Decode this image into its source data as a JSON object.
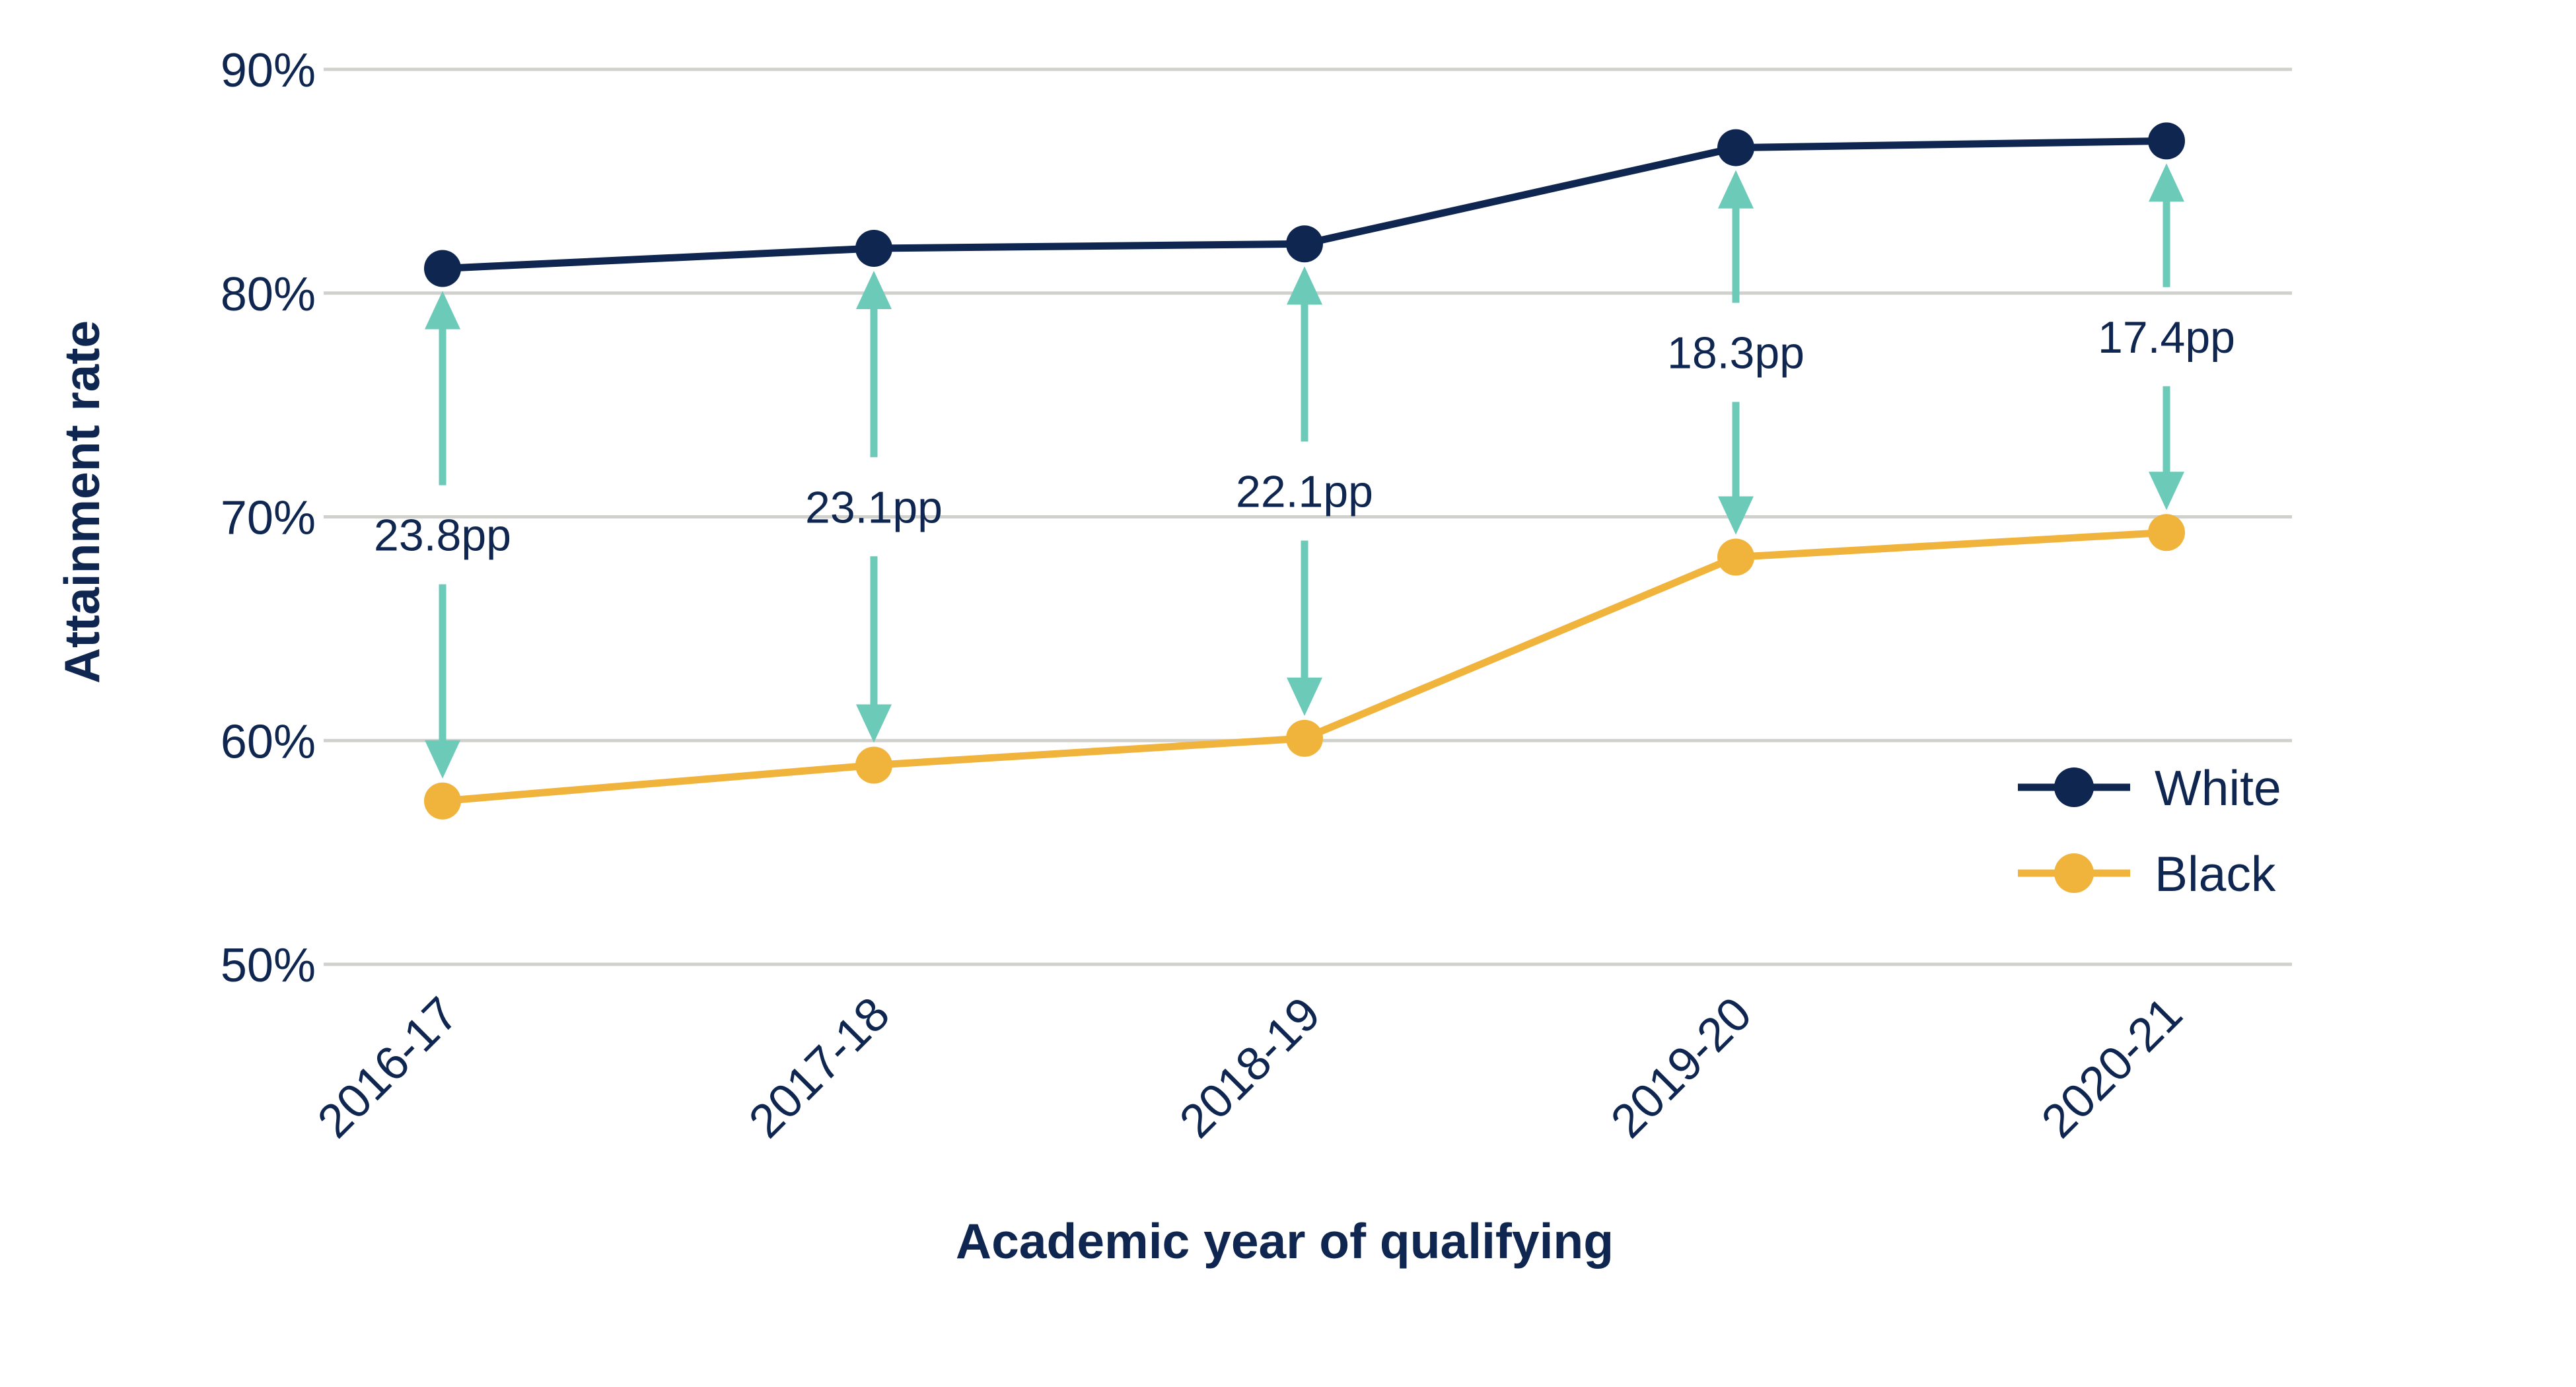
{
  "chart_data": {
    "type": "line",
    "title": "",
    "xlabel": "Academic year of qualifying",
    "ylabel": "Attainment rate",
    "categories": [
      "2016-17",
      "2017-18",
      "2018-19",
      "2019-20",
      "2020-21"
    ],
    "ylim": [
      50,
      90
    ],
    "yticks": [
      50,
      60,
      70,
      80,
      90
    ],
    "ytick_labels": [
      "50%",
      "60%",
      "70%",
      "80%",
      "90%"
    ],
    "grid": "horizontal",
    "legend_position": "bottom-right",
    "series": [
      {
        "name": "White",
        "color": "#0f2650",
        "values": [
          81.1,
          82.0,
          82.2,
          86.5,
          86.8
        ]
      },
      {
        "name": "Black",
        "color": "#f0b43c",
        "values": [
          57.3,
          58.9,
          60.1,
          68.2,
          69.3
        ]
      }
    ],
    "annotations": {
      "arrow_color": "#6ccab8",
      "gap_labels": [
        "23.8pp",
        "23.1pp",
        "22.1pp",
        "18.3pp",
        "17.4pp"
      ]
    }
  }
}
